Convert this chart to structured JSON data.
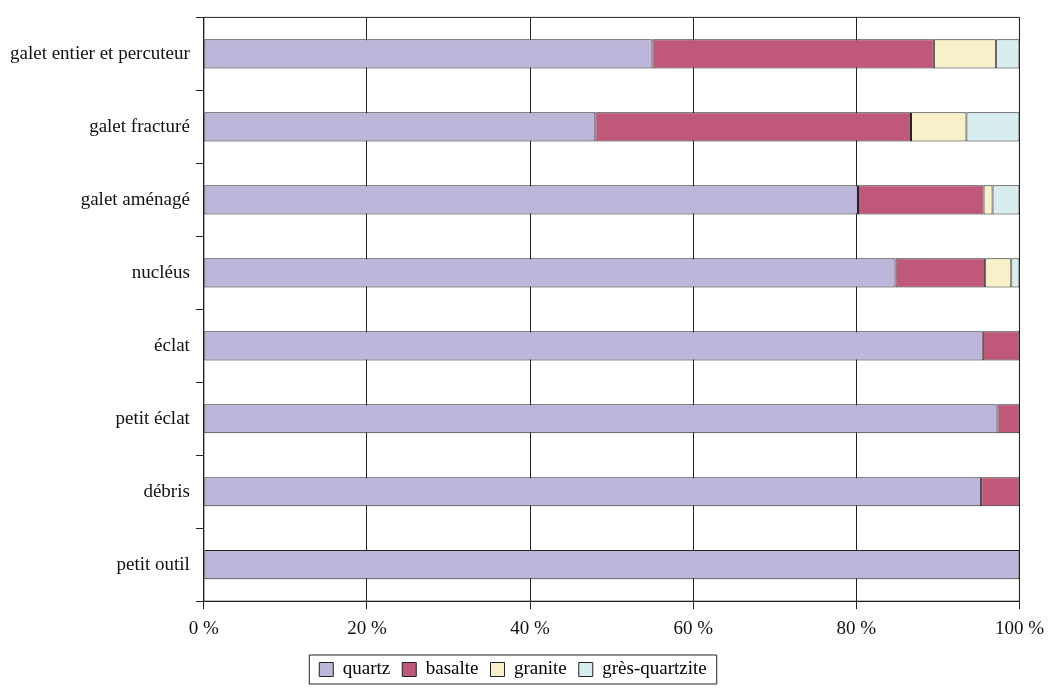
{
  "chart_data": {
    "type": "bar",
    "orientation": "horizontal",
    "stacked": true,
    "categories": [
      "galet entier et percuteur",
      "galet fracturé",
      "galet aménagé",
      "nucléus",
      "éclat",
      "petit éclat",
      "débris",
      "petit outil"
    ],
    "series": [
      {
        "name": "quartz",
        "color": "#bcb6da",
        "values": [
          55,
          48,
          80.2,
          84.8,
          95.5,
          97.3,
          95.3,
          100
        ]
      },
      {
        "name": "basalte",
        "color": "#c0587a",
        "values": [
          34.5,
          38.7,
          15.4,
          11,
          4.5,
          2.7,
          4.7,
          0
        ]
      },
      {
        "name": "granite",
        "color": "#f8f0c8",
        "values": [
          7.6,
          6.8,
          1.1,
          3.2,
          0,
          0,
          0,
          0
        ]
      },
      {
        "name": "grès-quartzite",
        "color": "#d8eeee",
        "values": [
          2.9,
          6.5,
          3.3,
          1,
          0,
          0,
          0,
          0
        ]
      }
    ],
    "xlim": [
      0,
      100
    ],
    "xticks": [
      {
        "value": 0,
        "label": "0 %"
      },
      {
        "value": 20,
        "label": "20 %"
      },
      {
        "value": 40,
        "label": "40 %"
      },
      {
        "value": 60,
        "label": "60 %"
      },
      {
        "value": 80,
        "label": "80 %"
      },
      {
        "value": 100,
        "label": "100 %"
      }
    ],
    "grid": "x",
    "legend": "bottom"
  }
}
